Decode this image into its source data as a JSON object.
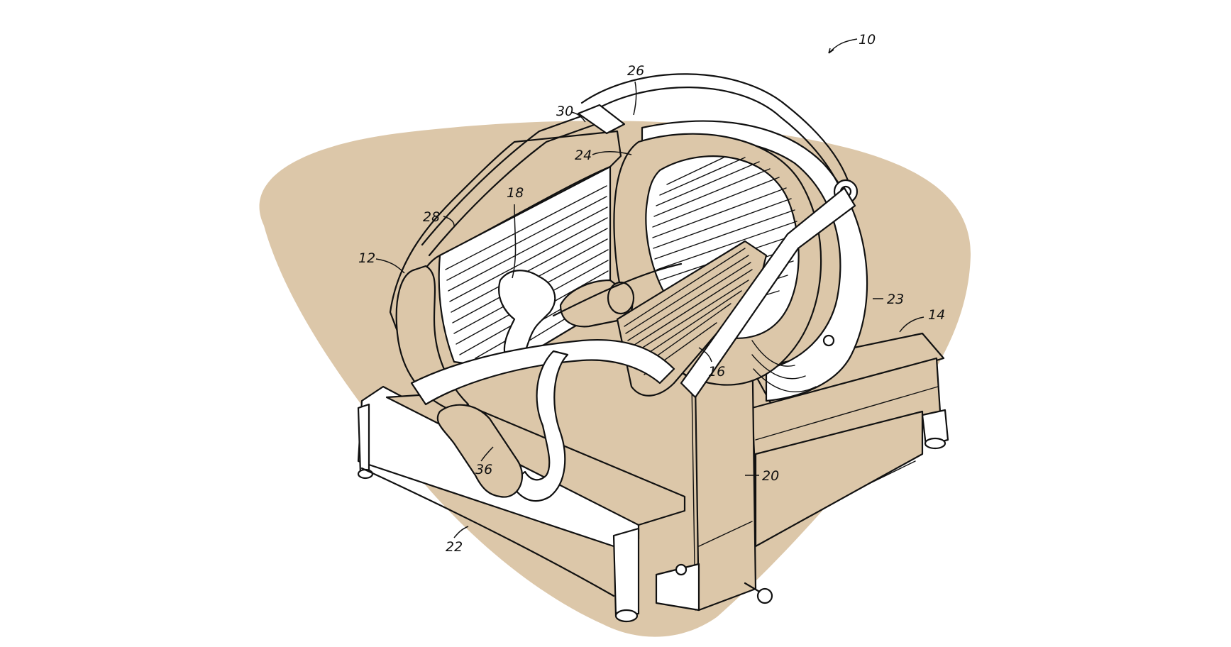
{
  "colors": {
    "background": "#ffffff",
    "blob": "#dcc7a9",
    "line": "#111111"
  },
  "diagram": {
    "reference_numerals": {
      "r10": "10",
      "r12": "12",
      "r14": "14",
      "r16": "16",
      "r18": "18",
      "r20": "20",
      "r22": "22",
      "r23": "23",
      "r24": "24",
      "r26": "26",
      "r28": "28",
      "r30": "30",
      "r36": "36"
    }
  }
}
